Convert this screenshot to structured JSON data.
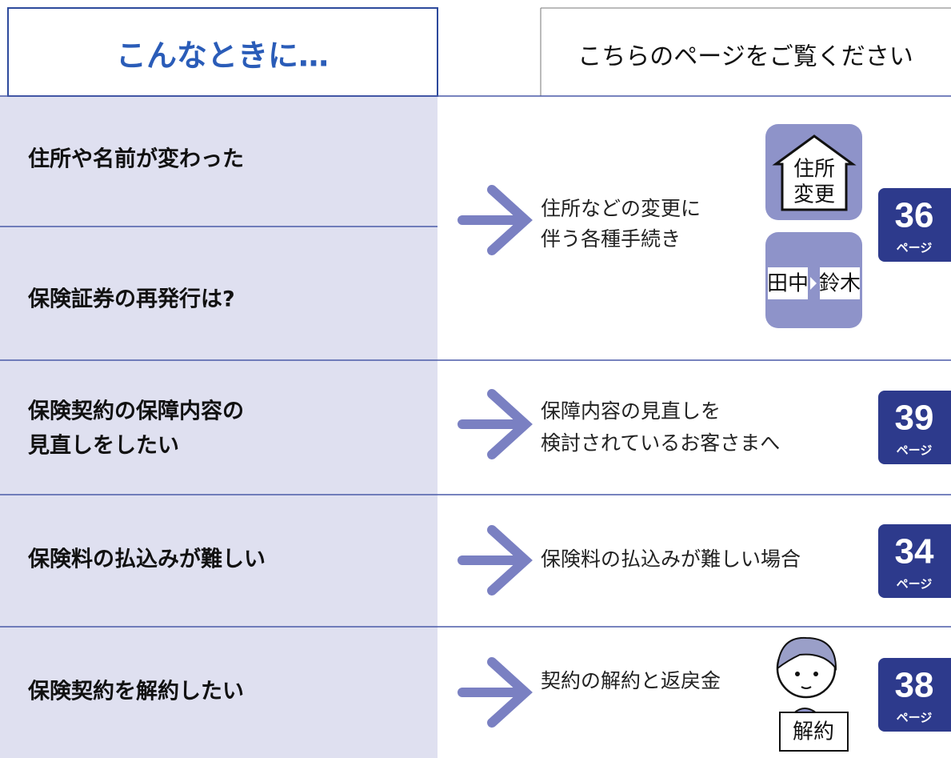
{
  "header": {
    "left": "こんなときに…",
    "right": "こちらのページをご覧ください"
  },
  "page_label": "ページ",
  "rows": [
    {
      "situations": [
        "住所や名前が変わった",
        "保険証券の再発行は?"
      ],
      "description": [
        "住所などの変更に",
        "伴う各種手続き"
      ],
      "page": 36,
      "icon_texts": [
        "住所",
        "変更",
        "田中",
        "鈴木"
      ]
    },
    {
      "situations": [
        "保険契約の保障内容の",
        "見直しをしたい"
      ],
      "description": [
        "保障内容の見直しを",
        "検討されているお客さまへ"
      ],
      "page": 39
    },
    {
      "situations": [
        "保険料の払込みが難しい"
      ],
      "description": [
        "保険料の払込みが難しい場合"
      ],
      "page": 34
    },
    {
      "situations": [
        "保険契約を解約したい"
      ],
      "description": [
        "契約の解約と返戻金"
      ],
      "page": 38,
      "icon_texts": [
        "解約"
      ]
    }
  ]
}
